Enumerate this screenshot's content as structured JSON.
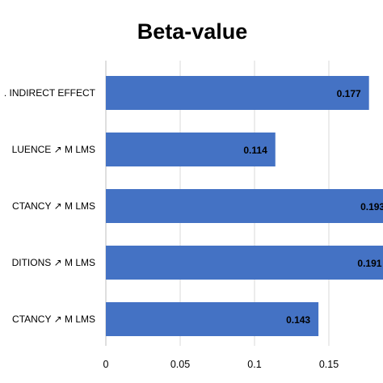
{
  "chart_data": {
    "type": "bar",
    "orientation": "horizontal",
    "title": "Beta-value",
    "categories": [
      ". INDIRECT EFFECT",
      "LUENCE ↗ M LMS",
      "CTANCY ↗ M LMS",
      "DITIONS ↗ M LMS",
      "CTANCY ↗ M LMS"
    ],
    "values": [
      0.177,
      0.114,
      0.193,
      0.191,
      0.143
    ],
    "value_labels": [
      "0.177",
      "0.114",
      "0.193",
      "0.191",
      "0.143"
    ],
    "x_ticks": [
      "0",
      "0.05",
      "0.1",
      "0.15"
    ],
    "xlim": [
      0,
      0.2
    ],
    "grid": true,
    "legend": "none",
    "bar_color": "#4472c4"
  }
}
